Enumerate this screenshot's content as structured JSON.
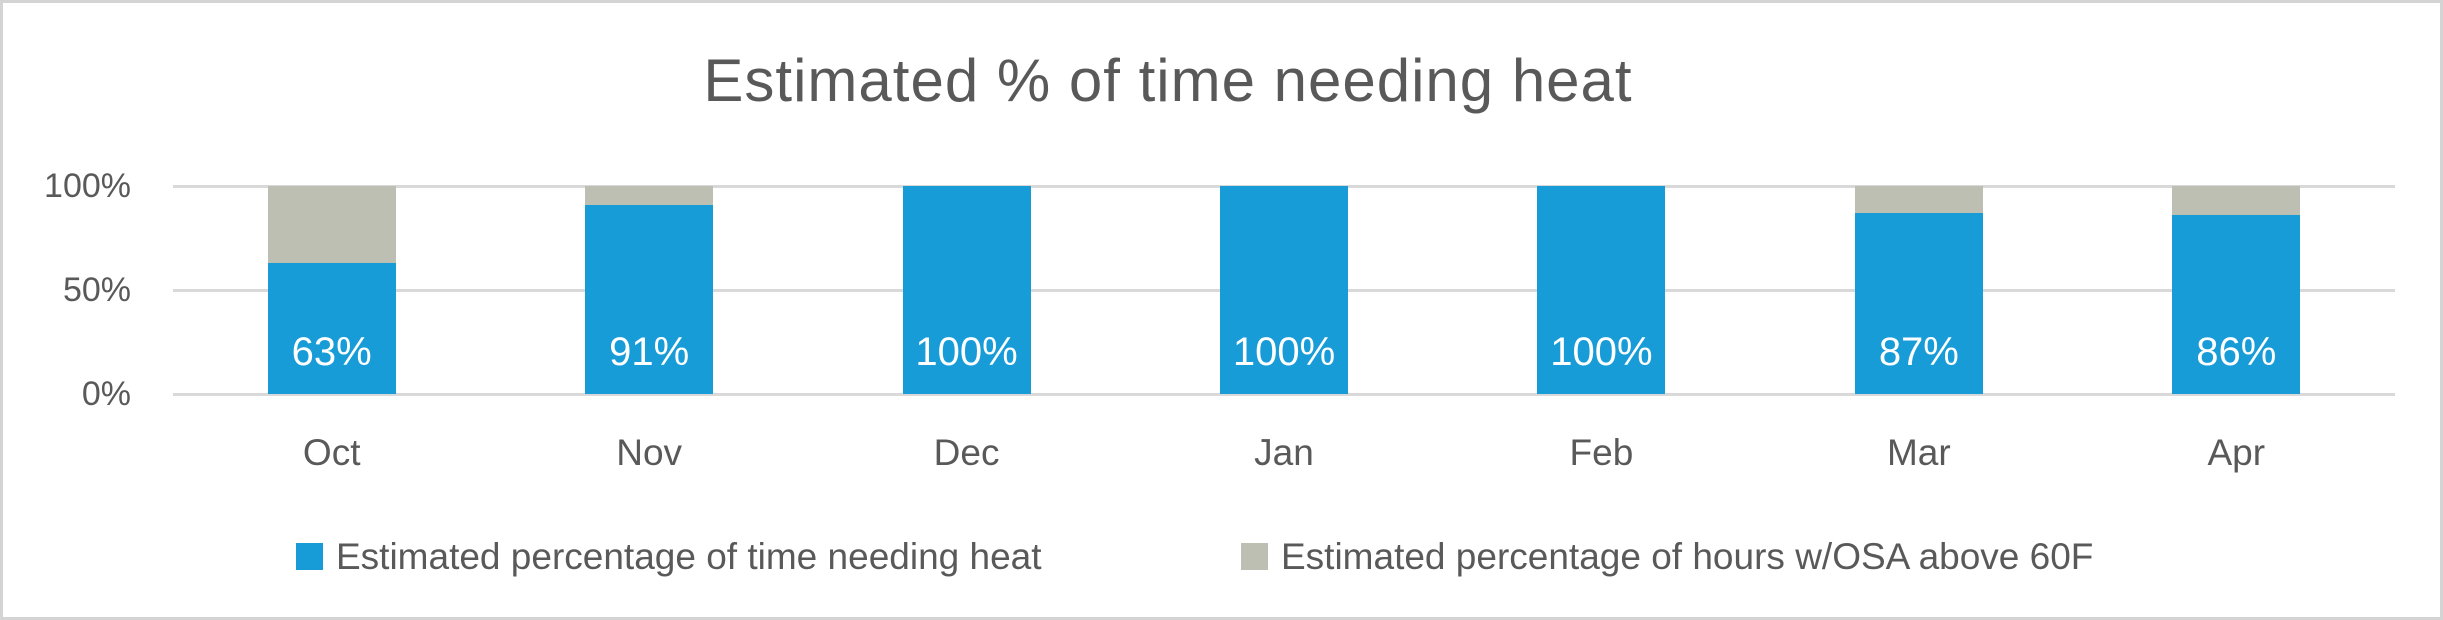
{
  "title": "Estimated % of time needing heat",
  "colors": {
    "heat_blue": "#189CD8",
    "osa_gray": "#BDBFB3",
    "text_gray": "#595959",
    "gridline": "#D9D9D9",
    "bar_label": "#FFFFFF"
  },
  "chart_data": {
    "type": "bar",
    "stacked": true,
    "title": "Estimated % of time needing heat",
    "categories": [
      "Oct",
      "Nov",
      "Dec",
      "Jan",
      "Feb",
      "Mar",
      "Apr"
    ],
    "series": [
      {
        "name": "Estimated percentage of time needing heat",
        "color_key": "heat_blue",
        "values": [
          63,
          91,
          100,
          100,
          100,
          87,
          86
        ],
        "data_labels": [
          "63%",
          "91%",
          "100%",
          "100%",
          "100%",
          "87%",
          "86%"
        ]
      },
      {
        "name": "Estimated percentage of hours w/OSA above 60F",
        "color_key": "osa_gray",
        "values": [
          37,
          9,
          0,
          0,
          0,
          13,
          14
        ],
        "data_labels": [
          "",
          "",
          "",
          "",
          "",
          "",
          ""
        ]
      }
    ],
    "xlabel": "",
    "ylabel": "",
    "ylim": [
      0,
      100
    ],
    "grid": true,
    "legend_position": "bottom",
    "y_ticks": [
      {
        "label": "100%",
        "value": 100
      },
      {
        "label": "50%",
        "value": 50
      },
      {
        "label": "0%",
        "value": 0
      }
    ]
  },
  "legend": {
    "items": [
      {
        "label": "Estimated percentage of time needing heat",
        "color_key": "heat_blue"
      },
      {
        "label": "Estimated percentage of hours w/OSA above 60F",
        "color_key": "osa_gray"
      }
    ]
  }
}
